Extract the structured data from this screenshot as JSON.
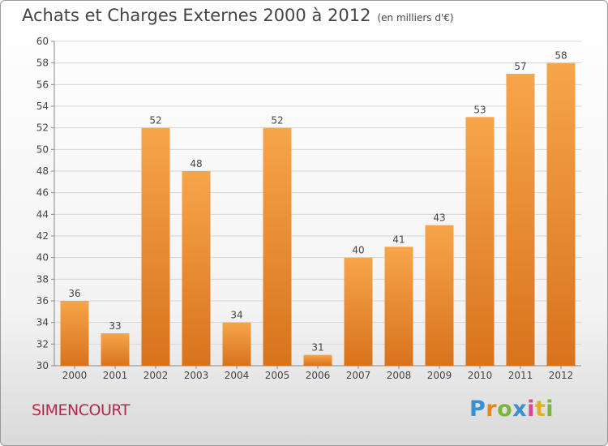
{
  "header": {
    "title": "Achats et Charges Externes 2000 à 2012",
    "unit": "(en milliers d'€)"
  },
  "footer": {
    "city": "SIMENCOURT",
    "logo_text": "Proxiti"
  },
  "colors": {
    "bar_top": "#f7a54a",
    "bar_bottom": "#d8731c",
    "grid": "#d6d6d6",
    "city": "#b4294a"
  },
  "chart_data": {
    "type": "bar",
    "title": "Achats et Charges Externes 2000 à 2012",
    "subtitle": "(en milliers d'€)",
    "categories": [
      "2000",
      "2001",
      "2002",
      "2003",
      "2004",
      "2005",
      "2006",
      "2007",
      "2008",
      "2009",
      "2010",
      "2011",
      "2012"
    ],
    "values": [
      36,
      33,
      52,
      48,
      34,
      52,
      31,
      40,
      41,
      43,
      53,
      57,
      58
    ],
    "ylim": [
      30,
      60
    ],
    "ytick_step": 2,
    "grid": true,
    "data_labels": true
  }
}
